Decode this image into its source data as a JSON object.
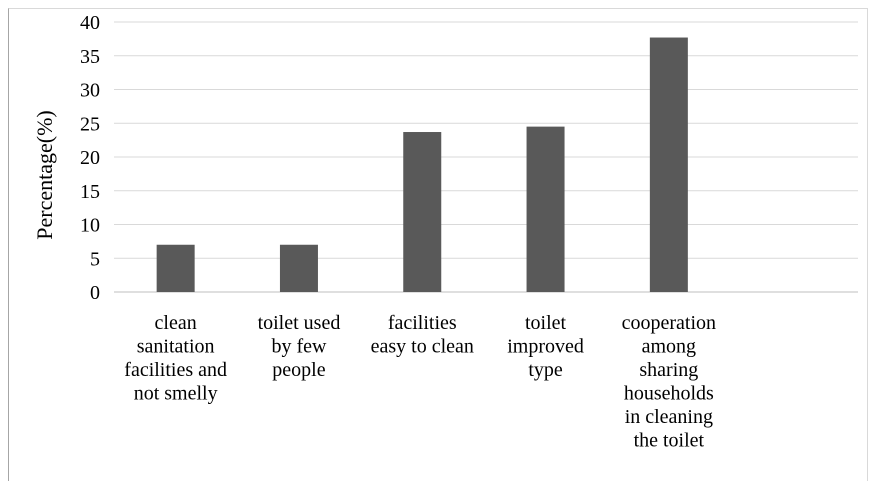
{
  "chart_data": {
    "type": "bar",
    "ylabel": "Percentage(%)",
    "xlabel": "",
    "ylim": [
      0,
      40
    ],
    "yticks": [
      0,
      5,
      10,
      15,
      20,
      25,
      30,
      35,
      40
    ],
    "grid": true,
    "categories": [
      [
        "clean",
        "sanitation",
        "facilities and",
        "not smelly"
      ],
      [
        "toilet used",
        "by few",
        "people"
      ],
      [
        "facilities",
        "easy to clean"
      ],
      [
        "toilet",
        "improved",
        "type"
      ],
      [
        "cooperation",
        "among",
        "sharing",
        "households",
        "in cleaning",
        "the toilet"
      ]
    ],
    "values": [
      7.0,
      7.0,
      23.7,
      24.5,
      37.7
    ],
    "colors": {
      "bar": "#595959",
      "grid": "#d9d9d9",
      "axis": "#bfbfbf"
    }
  }
}
